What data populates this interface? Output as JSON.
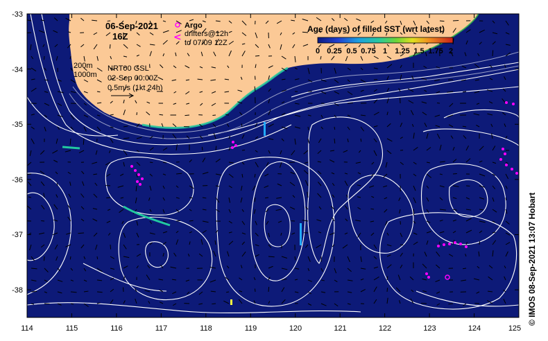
{
  "map": {
    "date": "06-Sep-2021",
    "time": "16Z",
    "argo_label": "Argo",
    "drifters_line1": "drifters@12h",
    "drifters_line2": "to 07/09 12Z",
    "isobath_1": "200m",
    "isobath_2": "1000m",
    "analysis_line1": "NRT00 GSL",
    "analysis_line2": "02-Sep 00:00Z",
    "scale_label": "0.5m/s (1kt 24h)",
    "credit": "© IMOS 08-Sep-2021 13:07 Hobart",
    "x_ticks": [
      "114",
      "115",
      "116",
      "117",
      "118",
      "119",
      "120",
      "121",
      "122",
      "123",
      "124",
      "125"
    ],
    "y_ticks": [
      "-33",
      "-34",
      "-35",
      "-36",
      "-37",
      "-38"
    ],
    "lon_range": [
      114,
      125
    ],
    "lat_range": [
      -33,
      -38.5
    ],
    "colors": {
      "ocean": "#0d1a78",
      "land": "#fbc996",
      "argo": "#ff00ff",
      "contour": "#ffffff"
    }
  },
  "legend": {
    "title": "Age (days) of filled SST (wrt latest)",
    "ticks": [
      "0",
      "0.25",
      "0.5",
      "0.75",
      "1",
      "1.25",
      "1.5",
      "1.75",
      "2"
    ]
  }
}
